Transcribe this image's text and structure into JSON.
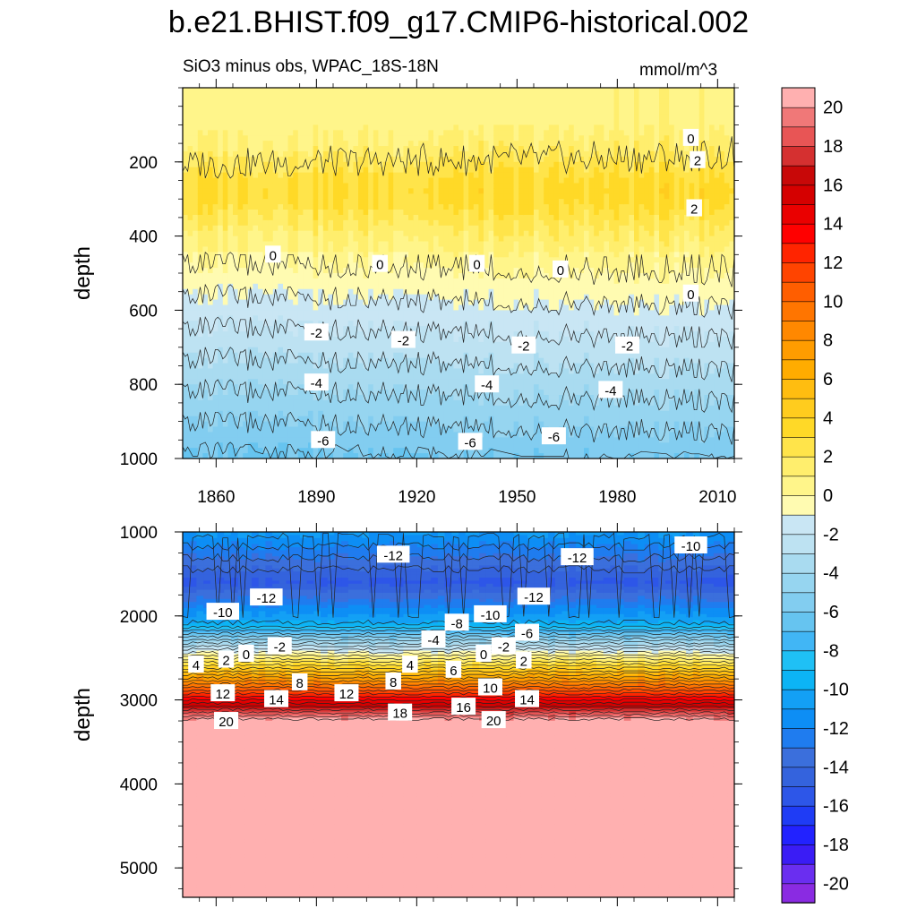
{
  "title": "b.e21.BHIST.f09_g17.CMIP6-historical.002",
  "subtitle": "SiO3 minus obs, WPAC_18S-18N",
  "units": "mmol/m^3",
  "chart_data": [
    {
      "type": "heatmap",
      "panel": "upper",
      "ylabel": "depth",
      "xlabel": "",
      "xlim": [
        1850,
        2015
      ],
      "ylim": [
        1000,
        0
      ],
      "x_ticks": [
        1860,
        1890,
        1920,
        1950,
        1980,
        2010
      ],
      "y_ticks": [
        200,
        400,
        600,
        800,
        1000
      ],
      "contour_labels": [
        {
          "value": "0",
          "x": 2002,
          "y": 135
        },
        {
          "value": "2",
          "x": 2004,
          "y": 195
        },
        {
          "value": "2",
          "x": 2003,
          "y": 325
        },
        {
          "value": "0",
          "x": 1877,
          "y": 450
        },
        {
          "value": "0",
          "x": 1909,
          "y": 475
        },
        {
          "value": "0",
          "x": 1938,
          "y": 475
        },
        {
          "value": "0",
          "x": 1963,
          "y": 490
        },
        {
          "value": "0",
          "x": 2002,
          "y": 555
        },
        {
          "value": "-2",
          "x": 1890,
          "y": 660
        },
        {
          "value": "-2",
          "x": 1916,
          "y": 680
        },
        {
          "value": "-2",
          "x": 1952,
          "y": 695
        },
        {
          "value": "-2",
          "x": 1983,
          "y": 695
        },
        {
          "value": "-4",
          "x": 1890,
          "y": 795
        },
        {
          "value": "-4",
          "x": 1941,
          "y": 800
        },
        {
          "value": "-4",
          "x": 1978,
          "y": 815
        },
        {
          "value": "-6",
          "x": 1892,
          "y": 950
        },
        {
          "value": "-6",
          "x": 1936,
          "y": 955
        },
        {
          "value": "-6",
          "x": 1961,
          "y": 940
        }
      ]
    },
    {
      "type": "heatmap",
      "panel": "lower",
      "ylabel": "depth",
      "xlabel": "",
      "xlim": [
        1850,
        2015
      ],
      "ylim": [
        5350,
        1000
      ],
      "x_ticks": [
        1860,
        1890,
        1920,
        1950,
        1980,
        2010
      ],
      "y_ticks": [
        1000,
        2000,
        3000,
        4000,
        5000
      ],
      "contour_labels": [
        {
          "value": "-12",
          "x": 1913,
          "y": 1270
        },
        {
          "value": "-12",
          "x": 1968,
          "y": 1300
        },
        {
          "value": "-10",
          "x": 2002,
          "y": 1160
        },
        {
          "value": "-12",
          "x": 1875,
          "y": 1780
        },
        {
          "value": "-12",
          "x": 1955,
          "y": 1770
        },
        {
          "value": "-10",
          "x": 1862,
          "y": 1950
        },
        {
          "value": "-10",
          "x": 1942,
          "y": 1980
        },
        {
          "value": "-8",
          "x": 1932,
          "y": 2080
        },
        {
          "value": "-6",
          "x": 1953,
          "y": 2200
        },
        {
          "value": "-4",
          "x": 1925,
          "y": 2280
        },
        {
          "value": "-2",
          "x": 1879,
          "y": 2360
        },
        {
          "value": "-2",
          "x": 1946,
          "y": 2360
        },
        {
          "value": "0",
          "x": 1869,
          "y": 2450
        },
        {
          "value": "0",
          "x": 1940,
          "y": 2450
        },
        {
          "value": "2",
          "x": 1863,
          "y": 2520
        },
        {
          "value": "2",
          "x": 1952,
          "y": 2530
        },
        {
          "value": "4",
          "x": 1854,
          "y": 2580
        },
        {
          "value": "4",
          "x": 1918,
          "y": 2580
        },
        {
          "value": "6",
          "x": 1931,
          "y": 2640
        },
        {
          "value": "8",
          "x": 1885,
          "y": 2790
        },
        {
          "value": "8",
          "x": 1913,
          "y": 2780
        },
        {
          "value": "10",
          "x": 1942,
          "y": 2850
        },
        {
          "value": "12",
          "x": 1862,
          "y": 2920
        },
        {
          "value": "12",
          "x": 1899,
          "y": 2920
        },
        {
          "value": "14",
          "x": 1878,
          "y": 2990
        },
        {
          "value": "14",
          "x": 1953,
          "y": 2990
        },
        {
          "value": "16",
          "x": 1934,
          "y": 3080
        },
        {
          "value": "18",
          "x": 1915,
          "y": 3150
        },
        {
          "value": "20",
          "x": 1863,
          "y": 3250
        },
        {
          "value": "20",
          "x": 1943,
          "y": 3240
        }
      ]
    },
    {
      "type": "colorbar",
      "levels": [
        -21,
        -20,
        -19,
        -18,
        -17,
        -16,
        -15,
        -14,
        -13,
        -12,
        -11,
        -10,
        -9,
        -8,
        -7,
        -6,
        -5,
        -4,
        -3,
        -2,
        -1,
        0,
        1,
        2,
        3,
        4,
        5,
        6,
        7,
        8,
        9,
        10,
        11,
        12,
        13,
        14,
        15,
        16,
        17,
        18,
        19,
        20,
        21
      ],
      "colors": [
        "#8a2be2",
        "#6a2ef0",
        "#3a1cf5",
        "#2222ff",
        "#1f3cf5",
        "#2d56e8",
        "#3463dd",
        "#3b6fdc",
        "#1f7cef",
        "#0d8ef5",
        "#13a0f5",
        "#0cb4f5",
        "#1fc0f5",
        "#41b6f5",
        "#66c4f0",
        "#82cdf0",
        "#96d5f0",
        "#a9dbf0",
        "#bde2f2",
        "#c9e6f4",
        "#fffbb1",
        "#fff58a",
        "#ffee6d",
        "#ffe44a",
        "#ffd927",
        "#ffcc1e",
        "#ffbd10",
        "#ffac00",
        "#ff9c00",
        "#ff8800",
        "#ff7500",
        "#ff5e00",
        "#ff4400",
        "#ff2400",
        "#ff0000",
        "#ea0000",
        "#d50000",
        "#c80808",
        "#d53030",
        "#e85555",
        "#f07878",
        "#ffb0b0"
      ],
      "tick_labels": [
        "20",
        "18",
        "16",
        "14",
        "12",
        "10",
        "8",
        "6",
        "4",
        "2",
        "0",
        "-2",
        "-4",
        "-6",
        "-8",
        "-10",
        "-12",
        "-14",
        "-16",
        "-18",
        "-20"
      ]
    }
  ]
}
